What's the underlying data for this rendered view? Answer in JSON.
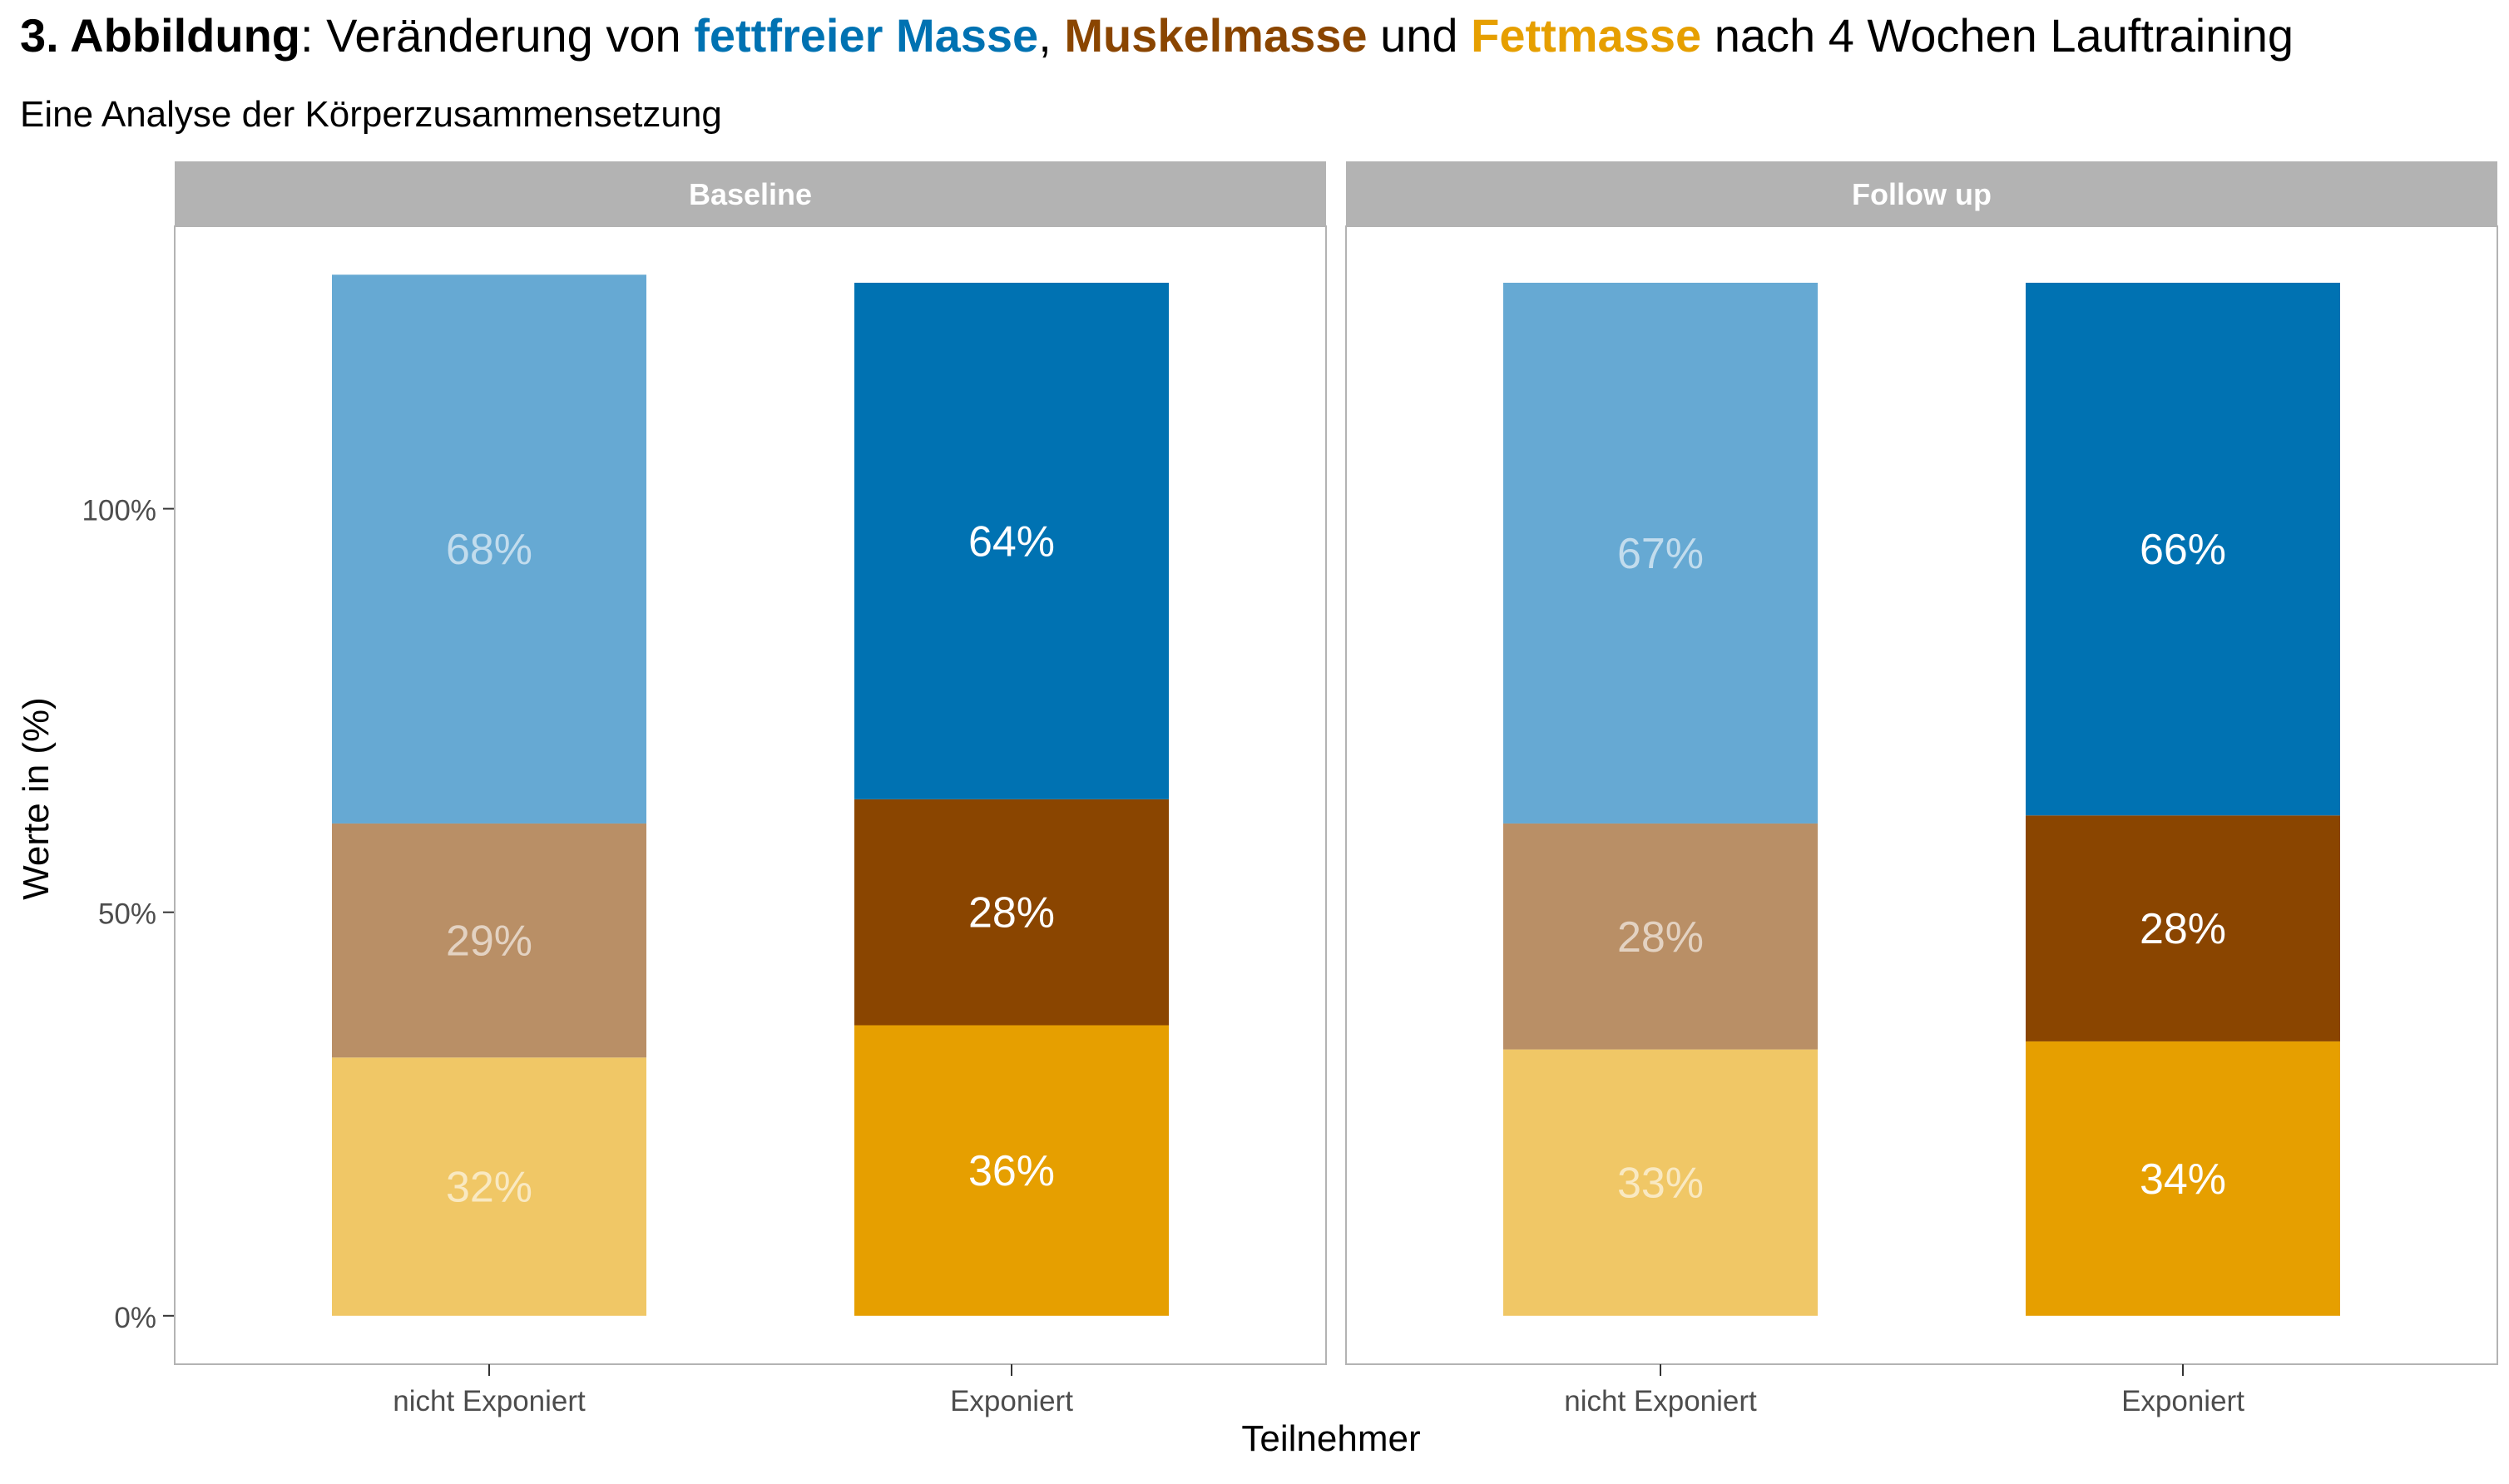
{
  "title": {
    "prefix_bold": "3. Abbildung",
    "prefix_rest": ": Veränderung von ",
    "term1": "fettfreier Masse",
    "sep1": ", ",
    "term2": "Muskelmasse",
    "sep2": " und ",
    "term3": "Fettmasse",
    "suffix": " nach 4 Wochen Lauftraining"
  },
  "subtitle": "Eine Analyse der Körperzusammensetzung",
  "colors": {
    "term1": "#0072b2",
    "term2": "#8a4500",
    "term3": "#e69f00",
    "strip_bg": "#b3b3b3",
    "panel_border": "#b3b3b3",
    "axis_text": "#4d4d4d"
  },
  "chart_data": {
    "type": "bar",
    "stacked": true,
    "xlabel": "Teilnehmer",
    "ylabel": "Werte in (%)",
    "ytick_labels": [
      "0%",
      "50%",
      "100%"
    ],
    "ytick_values": [
      0,
      50,
      100
    ],
    "ylim": [
      -6,
      135
    ],
    "grid": false,
    "panels": [
      {
        "name": "Baseline",
        "categories": [
          "nicht Exponiert",
          "Exponiert"
        ],
        "bars": [
          {
            "category": "nicht Exponiert",
            "exposed": false,
            "segments": [
              {
                "series": "Fettmasse",
                "value": 32,
                "label": "32%",
                "color": "#f0c766"
              },
              {
                "series": "Muskelmasse",
                "value": 29,
                "label": "29%",
                "color": "#b98f66"
              },
              {
                "series": "fettfreie Masse",
                "value": 68,
                "label": "68%",
                "color": "#66a9d3"
              }
            ]
          },
          {
            "category": "Exponiert",
            "exposed": true,
            "segments": [
              {
                "series": "Fettmasse",
                "value": 36,
                "label": "36%",
                "color": "#e69f00"
              },
              {
                "series": "Muskelmasse",
                "value": 28,
                "label": "28%",
                "color": "#8a4500"
              },
              {
                "series": "fettfreie Masse",
                "value": 64,
                "label": "64%",
                "color": "#0072b2"
              }
            ]
          }
        ]
      },
      {
        "name": "Follow up",
        "categories": [
          "nicht Exponiert",
          "Exponiert"
        ],
        "bars": [
          {
            "category": "nicht Exponiert",
            "exposed": false,
            "segments": [
              {
                "series": "Fettmasse",
                "value": 33,
                "label": "33%",
                "color": "#f0c766"
              },
              {
                "series": "Muskelmasse",
                "value": 28,
                "label": "28%",
                "color": "#b98f66"
              },
              {
                "series": "fettfreie Masse",
                "value": 67,
                "label": "67%",
                "color": "#66a9d3"
              }
            ]
          },
          {
            "category": "Exponiert",
            "exposed": true,
            "segments": [
              {
                "series": "Fettmasse",
                "value": 34,
                "label": "34%",
                "color": "#e69f00"
              },
              {
                "series": "Muskelmasse",
                "value": 28,
                "label": "28%",
                "color": "#8a4500"
              },
              {
                "series": "fettfreie Masse",
                "value": 66,
                "label": "66%",
                "color": "#0072b2"
              }
            ]
          }
        ]
      }
    ]
  }
}
